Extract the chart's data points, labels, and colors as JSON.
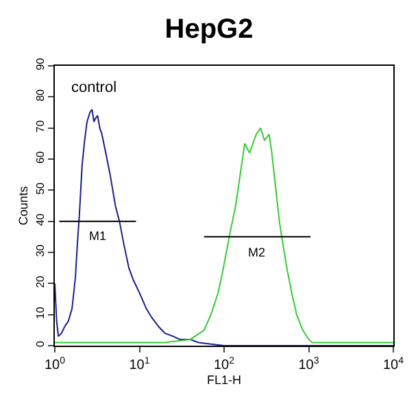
{
  "chart_data": {
    "type": "line",
    "title": "HepG2",
    "xlabel": "FL1-H",
    "ylabel": "Counts",
    "log": "x",
    "grid": false,
    "legend": false,
    "marker": "none",
    "line_style": "solid",
    "annotations": [
      "control"
    ],
    "xlim": [
      1,
      10000
    ],
    "xticks": [
      {
        "value": 1,
        "label": "10$^{0}$"
      },
      {
        "value": 10,
        "label": "10$^{1}$"
      },
      {
        "value": 100,
        "label": "10$^{2}$"
      },
      {
        "value": 1000,
        "label": "10$^{3}$"
      },
      {
        "value": 10000,
        "label": "10$^{4}$"
      }
    ],
    "ylim": [
      0,
      90
    ],
    "yticks": [
      0,
      10,
      20,
      30,
      40,
      50,
      60,
      70,
      80,
      90
    ],
    "series": [
      {
        "color": "#1c1c8c",
        "x": [
          1,
          1.05,
          1.1,
          1.2,
          1.3,
          1.45,
          1.6,
          1.75,
          1.85,
          1.95,
          2.1,
          2.25,
          2.4,
          2.6,
          2.75,
          2.9,
          3.0,
          3.2,
          3.4,
          3.6,
          4.0,
          4.5,
          5.2,
          5.8,
          6.5,
          7.5,
          8.5,
          10,
          12,
          14,
          17,
          20,
          25,
          30,
          40,
          50,
          70,
          100,
          150,
          300,
          1000,
          10000
        ],
        "values": [
          20,
          8,
          3,
          4,
          6,
          8,
          12,
          22,
          33,
          42,
          58,
          66,
          72,
          75,
          76,
          72,
          73,
          74,
          70,
          68,
          62,
          55,
          45,
          40,
          33,
          25,
          21,
          17,
          12,
          9,
          6,
          4,
          3,
          2,
          2,
          1,
          0.5,
          0,
          0,
          0,
          0,
          0
        ]
      },
      {
        "color": "#33cc33",
        "x": [
          1,
          3,
          10,
          20,
          40,
          58,
          70,
          85,
          95,
          115,
          137,
          155,
          175,
          200,
          240,
          270,
          300,
          340,
          363,
          410,
          450,
          500,
          560,
          630,
          720,
          850,
          1000,
          1100,
          1500,
          3000,
          10000
        ],
        "values": [
          1,
          1,
          1,
          1,
          2,
          5,
          10,
          17,
          23,
          35,
          45,
          55,
          65,
          62,
          68,
          70,
          66,
          68,
          63,
          50,
          40,
          32,
          24,
          17,
          10,
          5,
          2,
          1,
          1,
          1,
          1
        ]
      },
      {
        "name": "M1",
        "color": "#000000",
        "x": [
          1.13,
          9.1
        ],
        "values": [
          40,
          40
        ]
      },
      {
        "name": "M2",
        "color": "#000000",
        "x": [
          58,
          1050
        ],
        "values": [
          35,
          35
        ]
      }
    ]
  }
}
